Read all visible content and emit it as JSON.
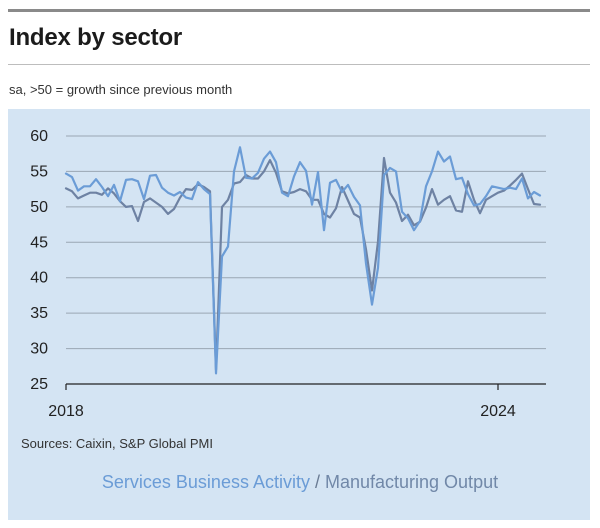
{
  "title": "Index by sector",
  "subtitle": "sa, >50 = growth since previous month",
  "source": "Sources: Caixin, S&P Global PMI",
  "legend": {
    "series1": "Services Business Activity",
    "separator": " / ",
    "series2": "Manufacturing Output"
  },
  "colors": {
    "panel": "#d4e4f3",
    "services": "#6b9cd6",
    "manufacturing": "#6e82a3",
    "grid": "#9aa6b3",
    "axis": "#222222"
  },
  "chart_data": {
    "type": "line",
    "ylim": [
      25,
      60
    ],
    "yticks": [
      25,
      30,
      35,
      40,
      45,
      50,
      55,
      60
    ],
    "xlim": [
      "2018-01",
      "2024-09"
    ],
    "xtick_labels": [
      {
        "label": "2018",
        "x": "2018-01"
      },
      {
        "label": "2024",
        "x": "2024-01"
      }
    ],
    "x": [
      "2018-01",
      "2018-02",
      "2018-03",
      "2018-04",
      "2018-05",
      "2018-06",
      "2018-07",
      "2018-08",
      "2018-09",
      "2018-10",
      "2018-11",
      "2018-12",
      "2019-01",
      "2019-02",
      "2019-03",
      "2019-04",
      "2019-05",
      "2019-06",
      "2019-07",
      "2019-08",
      "2019-09",
      "2019-10",
      "2019-11",
      "2019-12",
      "2020-01",
      "2020-02",
      "2020-03",
      "2020-04",
      "2020-05",
      "2020-06",
      "2020-07",
      "2020-08",
      "2020-09",
      "2020-10",
      "2020-11",
      "2020-12",
      "2021-01",
      "2021-02",
      "2021-03",
      "2021-04",
      "2021-05",
      "2021-06",
      "2021-07",
      "2021-08",
      "2021-09",
      "2021-10",
      "2021-11",
      "2021-12",
      "2022-01",
      "2022-02",
      "2022-03",
      "2022-04",
      "2022-05",
      "2022-06",
      "2022-07",
      "2022-08",
      "2022-09",
      "2022-10",
      "2022-11",
      "2022-12",
      "2023-01",
      "2023-02",
      "2023-03",
      "2023-04",
      "2023-05",
      "2023-06",
      "2023-07",
      "2023-08",
      "2023-09",
      "2023-10",
      "2023-11",
      "2023-12",
      "2024-01",
      "2024-02",
      "2024-03",
      "2024-04",
      "2024-05",
      "2024-06",
      "2024-07",
      "2024-08"
    ],
    "series": [
      {
        "name": "Services Business Activity",
        "values": [
          54.7,
          54.2,
          52.3,
          52.9,
          52.9,
          53.9,
          52.8,
          51.5,
          53.1,
          50.8,
          53.8,
          53.9,
          53.6,
          51.1,
          54.4,
          54.5,
          52.7,
          52.0,
          51.6,
          52.1,
          51.3,
          51.1,
          53.5,
          52.5,
          51.8,
          26.5,
          43.0,
          44.4,
          55.0,
          58.4,
          54.1,
          54.0,
          54.8,
          56.8,
          57.8,
          56.3,
          52.0,
          51.5,
          54.3,
          56.3,
          55.1,
          50.3,
          54.9,
          46.7,
          53.4,
          53.8,
          52.1,
          53.1,
          51.4,
          50.2,
          42.0,
          36.2,
          41.4,
          54.5,
          55.5,
          55.0,
          49.3,
          48.4,
          46.7,
          48.0,
          52.9,
          55.0,
          57.8,
          56.4,
          57.1,
          53.9,
          54.1,
          51.8,
          50.2,
          50.4,
          51.5,
          52.9,
          52.7,
          52.5,
          52.7,
          52.5,
          54.0,
          51.2,
          52.1,
          51.6
        ]
      },
      {
        "name": "Manufacturing Output",
        "values": [
          52.6,
          52.2,
          51.2,
          51.6,
          52.0,
          52.0,
          51.7,
          52.6,
          51.9,
          50.8,
          50.0,
          50.1,
          48.0,
          50.7,
          51.2,
          50.6,
          50.0,
          49.0,
          49.7,
          51.3,
          52.5,
          52.4,
          53.2,
          52.8,
          52.2,
          27.0,
          50.0,
          51.0,
          53.3,
          53.5,
          54.5,
          54.0,
          54.0,
          55.0,
          56.6,
          54.8,
          52.2,
          51.9,
          52.1,
          52.5,
          52.2,
          51.0,
          51.0,
          49.0,
          48.5,
          49.8,
          52.8,
          50.9,
          49.0,
          48.5,
          44.0,
          38.2,
          45.1,
          56.9,
          52.0,
          50.6,
          48.0,
          48.9,
          47.4,
          47.9,
          49.9,
          52.5,
          50.3,
          51.0,
          51.5,
          49.5,
          49.3,
          53.6,
          51.0,
          49.1,
          51.0,
          51.5,
          52.0,
          52.3,
          53.0,
          53.8,
          54.7,
          52.5,
          50.4,
          50.3
        ]
      }
    ]
  }
}
